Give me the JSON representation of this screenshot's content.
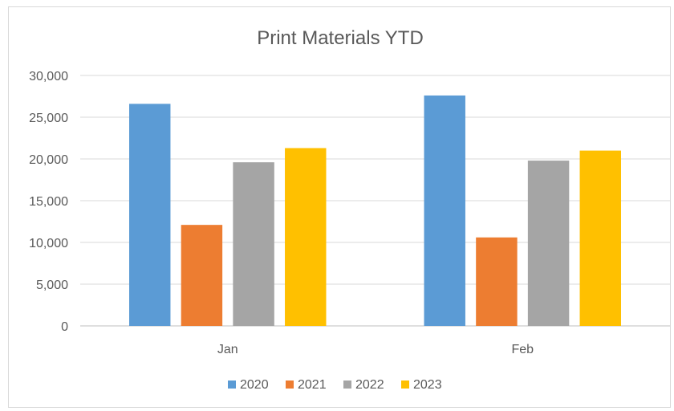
{
  "chart_data": {
    "type": "bar",
    "title": "Print Materials YTD",
    "xlabel": "",
    "ylabel": "",
    "categories": [
      "Jan",
      "Feb"
    ],
    "series": [
      {
        "name": "2020",
        "color": "#5b9bd5",
        "values": [
          26600,
          27600
        ]
      },
      {
        "name": "2021",
        "color": "#ed7d31",
        "values": [
          12100,
          10600
        ]
      },
      {
        "name": "2022",
        "color": "#a5a5a5",
        "values": [
          19600,
          19800
        ]
      },
      {
        "name": "2023",
        "color": "#ffc000",
        "values": [
          21300,
          21000
        ]
      }
    ],
    "ylim": [
      0,
      30000
    ],
    "y_ticks": [
      "0",
      "5,000",
      "10,000",
      "15,000",
      "20,000",
      "25,000",
      "30,000"
    ],
    "grid": true,
    "legend_position": "bottom"
  }
}
